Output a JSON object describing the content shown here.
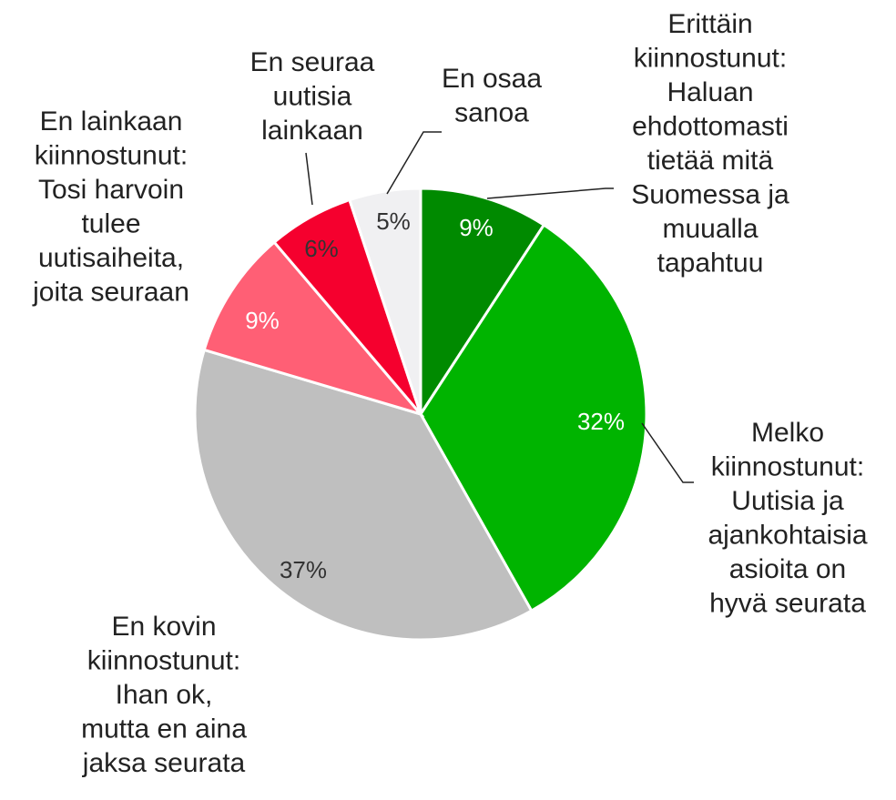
{
  "chart_data": {
    "type": "pie",
    "categories": [
      [
        "Erittäin",
        "kiinnostunut:",
        "Haluan",
        "ehdottomasti",
        "tietää mitä",
        "Suomessa ja",
        "muualla",
        "tapahtuu"
      ],
      [
        "Melko",
        "kiinnostunut:",
        "Uutisia ja",
        "ajankohtaisia",
        "asioita on",
        "hyvä seurata"
      ],
      [
        "En kovin",
        "kiinnostunut:",
        "Ihan ok,",
        "mutta en aina",
        "jaksa seurata"
      ],
      [
        "En lainkaan",
        "kiinnostunut:",
        "Tosi harvoin",
        "tulee",
        "uutisaiheita,",
        "joita seuraan"
      ],
      [
        "En seuraa",
        "uutisia",
        "lainkaan"
      ],
      [
        "En osaa",
        "sanoa"
      ]
    ],
    "values": [
      9,
      32,
      37,
      9,
      6,
      5
    ],
    "value_labels": [
      "9%",
      "32%",
      "37%",
      "9%",
      "6%",
      "5%"
    ],
    "colors": [
      "#008a00",
      "#00b400",
      "#bfbfbf",
      "#ff5f75",
      "#f5002e",
      "#f0f0f2"
    ],
    "label_colors": [
      "#ffffff",
      "#ffffff",
      "#333333",
      "#ffffff",
      "#333333",
      "#333333"
    ]
  }
}
